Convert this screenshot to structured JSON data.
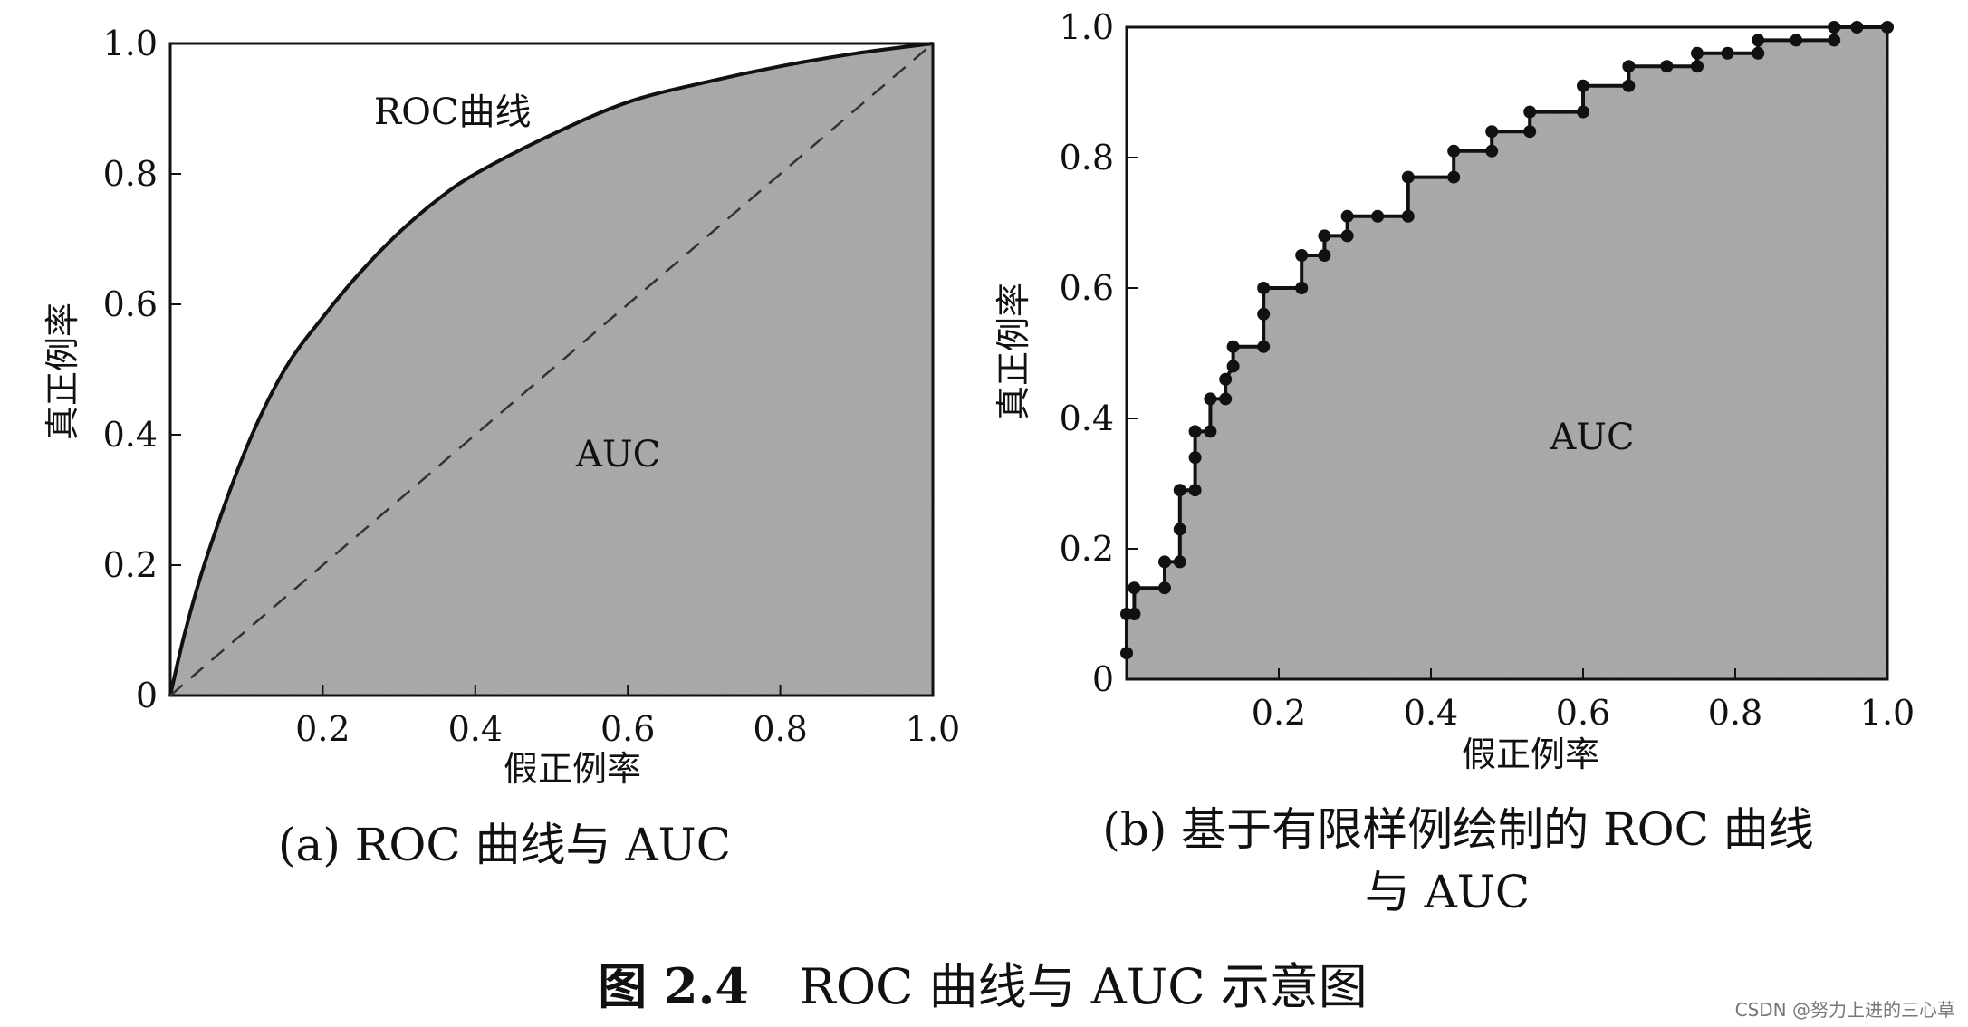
{
  "figure": {
    "caption_number": "图 2.4",
    "caption_text": "ROC 曲线与 AUC 示意图",
    "watermark": "CSDN @努力上进的三心草",
    "colors": {
      "fill": "#9e9e9e",
      "line": "#111111",
      "background": "#ffffff"
    }
  },
  "chart_data": [
    {
      "type": "area",
      "panel": "a",
      "caption": "(a) ROC 曲线与 AUC",
      "xlabel": "假正例率",
      "ylabel": "真正例率",
      "xlim": [
        0,
        1
      ],
      "ylim": [
        0,
        1
      ],
      "xticks": [
        "0.2",
        "0.4",
        "0.6",
        "0.8",
        "1.0"
      ],
      "yticks": [
        "0",
        "0.2",
        "0.4",
        "0.6",
        "0.8",
        "1.0"
      ],
      "annotations": [
        "ROC曲线",
        "AUC"
      ],
      "series": [
        {
          "name": "ROC曲线",
          "style": "solid",
          "x": [
            0,
            0.02,
            0.05,
            0.1,
            0.15,
            0.2,
            0.25,
            0.3,
            0.35,
            0.4,
            0.5,
            0.6,
            0.7,
            0.8,
            0.9,
            1.0
          ],
          "y": [
            0,
            0.1,
            0.22,
            0.38,
            0.5,
            0.58,
            0.65,
            0.71,
            0.76,
            0.8,
            0.86,
            0.91,
            0.94,
            0.965,
            0.985,
            1.0
          ]
        },
        {
          "style": "dashed",
          "x": [
            0,
            1
          ],
          "y": [
            0,
            1
          ]
        }
      ]
    },
    {
      "type": "line",
      "panel": "b",
      "caption": "(b) 基于有限样例绘制的 ROC 曲线与 AUC",
      "xlabel": "假正例率",
      "ylabel": "真正例率",
      "xlim": [
        0,
        1
      ],
      "ylim": [
        0,
        1
      ],
      "xticks": [
        "0.2",
        "0.4",
        "0.6",
        "0.8",
        "1.0"
      ],
      "yticks": [
        "0",
        "0.2",
        "0.4",
        "0.6",
        "0.8",
        "1.0"
      ],
      "annotations": [
        "AUC"
      ],
      "series": [
        {
          "style": "step-with-markers",
          "points": [
            [
              0,
              0.04
            ],
            [
              0,
              0.1
            ],
            [
              0.01,
              0.1
            ],
            [
              0.01,
              0.14
            ],
            [
              0.05,
              0.14
            ],
            [
              0.05,
              0.18
            ],
            [
              0.07,
              0.18
            ],
            [
              0.07,
              0.23
            ],
            [
              0.07,
              0.29
            ],
            [
              0.09,
              0.29
            ],
            [
              0.09,
              0.34
            ],
            [
              0.09,
              0.38
            ],
            [
              0.11,
              0.38
            ],
            [
              0.11,
              0.43
            ],
            [
              0.13,
              0.43
            ],
            [
              0.13,
              0.46
            ],
            [
              0.14,
              0.48
            ],
            [
              0.14,
              0.51
            ],
            [
              0.18,
              0.51
            ],
            [
              0.18,
              0.56
            ],
            [
              0.18,
              0.6
            ],
            [
              0.23,
              0.6
            ],
            [
              0.23,
              0.65
            ],
            [
              0.26,
              0.65
            ],
            [
              0.26,
              0.68
            ],
            [
              0.29,
              0.68
            ],
            [
              0.29,
              0.71
            ],
            [
              0.33,
              0.71
            ],
            [
              0.37,
              0.71
            ],
            [
              0.37,
              0.77
            ],
            [
              0.43,
              0.77
            ],
            [
              0.43,
              0.81
            ],
            [
              0.48,
              0.81
            ],
            [
              0.48,
              0.84
            ],
            [
              0.53,
              0.84
            ],
            [
              0.53,
              0.87
            ],
            [
              0.6,
              0.87
            ],
            [
              0.6,
              0.91
            ],
            [
              0.66,
              0.91
            ],
            [
              0.66,
              0.94
            ],
            [
              0.71,
              0.94
            ],
            [
              0.75,
              0.94
            ],
            [
              0.75,
              0.96
            ],
            [
              0.79,
              0.96
            ],
            [
              0.83,
              0.96
            ],
            [
              0.83,
              0.98
            ],
            [
              0.88,
              0.98
            ],
            [
              0.93,
              0.98
            ],
            [
              0.93,
              1.0
            ],
            [
              0.96,
              1.0
            ],
            [
              1.0,
              1.0
            ]
          ]
        }
      ]
    }
  ]
}
